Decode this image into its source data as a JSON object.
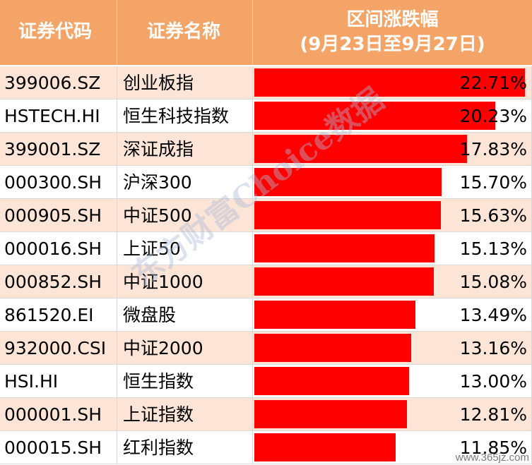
{
  "header": {
    "code": "证券代码",
    "name": "证券名称",
    "change_line1": "区间涨跌幅",
    "change_line2": "(9月23日至9月27日)"
  },
  "watermark": "东方财富Choice数据",
  "site_mark": "www.365jz.com",
  "colors": {
    "header_bg": "#f4a466",
    "row_alt_bg": "#fce4d6",
    "row_bg": "#ffffff",
    "bar": "#ff0000"
  },
  "chart_data": {
    "type": "table",
    "columns": [
      "证券代码",
      "证券名称",
      "区间涨跌幅 (9月23日至9月27日)"
    ],
    "xlim": [
      0,
      23
    ],
    "rows": [
      {
        "code": "399006.SZ",
        "name": "创业板指",
        "value": 22.71,
        "label": "22.71%"
      },
      {
        "code": "HSTECH.HI",
        "name": "恒生科技指数",
        "value": 20.23,
        "label": "20.23%"
      },
      {
        "code": "399001.SZ",
        "name": "深证成指",
        "value": 17.83,
        "label": "17.83%"
      },
      {
        "code": "000300.SH",
        "name": "沪深300",
        "value": 15.7,
        "label": "15.70%"
      },
      {
        "code": "000905.SH",
        "name": "中证500",
        "value": 15.63,
        "label": "15.63%"
      },
      {
        "code": "000016.SH",
        "name": "上证50",
        "value": 15.13,
        "label": "15.13%"
      },
      {
        "code": "000852.SH",
        "name": "中证1000",
        "value": 15.08,
        "label": "15.08%"
      },
      {
        "code": "861520.EI",
        "name": "微盘股",
        "value": 13.49,
        "label": "13.49%"
      },
      {
        "code": "932000.CSI",
        "name": "中证2000",
        "value": 13.16,
        "label": "13.16%"
      },
      {
        "code": "HSI.HI",
        "name": "恒生指数",
        "value": 13.0,
        "label": "13.00%"
      },
      {
        "code": "000001.SH",
        "name": "上证指数",
        "value": 12.81,
        "label": "12.81%"
      },
      {
        "code": "000015.SH",
        "name": "红利指数",
        "value": 11.85,
        "label": "11.85%"
      }
    ]
  }
}
